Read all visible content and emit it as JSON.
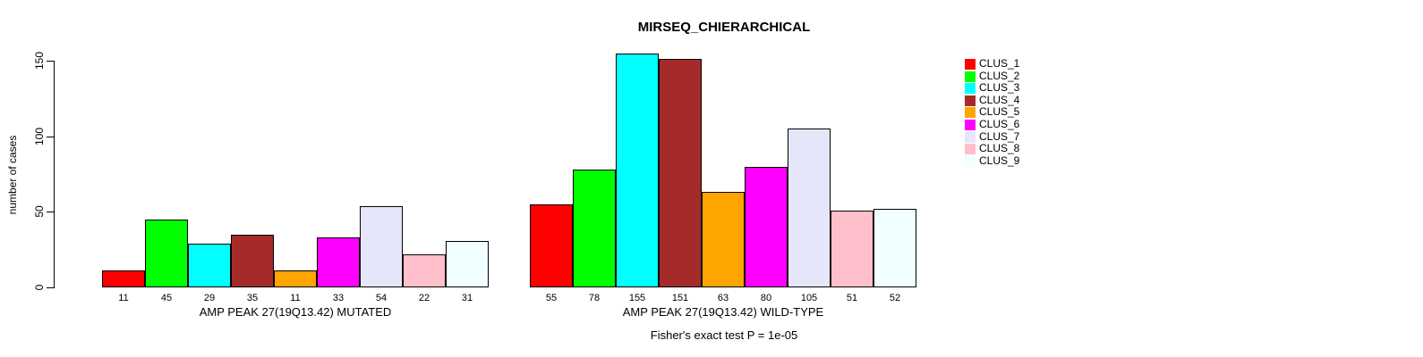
{
  "chart_data": {
    "type": "bar",
    "title": "MIRSEQ_CHIERARCHICAL",
    "ylabel": "number of cases",
    "ylim": [
      0,
      155
    ],
    "yticks": [
      0,
      50,
      100,
      150
    ],
    "grid": false,
    "legend_position": "right",
    "series": [
      {
        "name": "CLUS_1",
        "color": "#FF0000"
      },
      {
        "name": "CLUS_2",
        "color": "#00FF00"
      },
      {
        "name": "CLUS_3",
        "color": "#00FFFF"
      },
      {
        "name": "CLUS_4",
        "color": "#A52A2A"
      },
      {
        "name": "CLUS_5",
        "color": "#FFA500"
      },
      {
        "name": "CLUS_6",
        "color": "#FF00FF"
      },
      {
        "name": "CLUS_7",
        "color": "#E6E6FA"
      },
      {
        "name": "CLUS_8",
        "color": "#FFC0CB"
      },
      {
        "name": "CLUS_9",
        "color": "#F0FFFF"
      }
    ],
    "groups": [
      {
        "label": "AMP PEAK 27(19Q13.42) MUTATED",
        "values": [
          11,
          45,
          29,
          35,
          11,
          33,
          54,
          22,
          31
        ]
      },
      {
        "label": "AMP PEAK 27(19Q13.42) WILD-TYPE",
        "values": [
          55,
          78,
          155,
          151,
          63,
          80,
          105,
          51,
          52
        ]
      }
    ],
    "footnote": "Fisher's exact test P = 1e-05"
  },
  "colors": {
    "foreground": "#000000",
    "background": "#FFFFFF"
  }
}
